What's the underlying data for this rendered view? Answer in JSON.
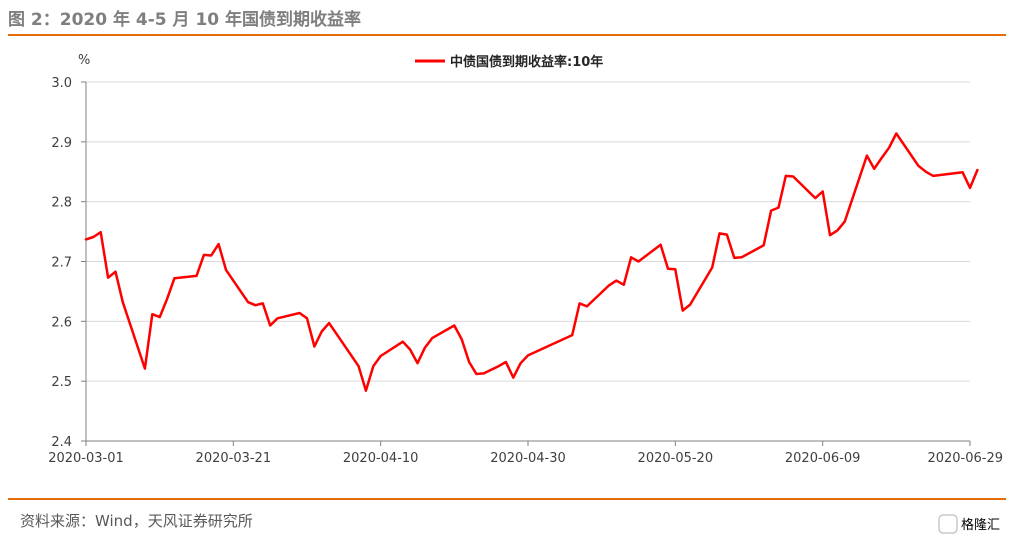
{
  "figure_title": "图 2：2020 年 4-5 月 10 年国债到期收益率",
  "source_note": "资料来源：Wind，天风证券研究所",
  "watermark": "格隆汇",
  "colors": {
    "accent_rule": "#e46c0a",
    "series": "#ff0000",
    "grid": "#d9d9d9",
    "axis": "#808080"
  },
  "chart_data": {
    "type": "line",
    "title": "",
    "ylabel": "%",
    "xlabel": "",
    "ylim": [
      2.4,
      3.0
    ],
    "yticks": [
      "3.0",
      "2.9",
      "2.8",
      "2.7",
      "2.6",
      "2.5",
      "2.4"
    ],
    "xticks": [
      "2020-03-01",
      "2020-03-21",
      "2020-04-10",
      "2020-04-30",
      "2020-05-20",
      "2020-06-09",
      "2020-06-29"
    ],
    "x_range": [
      "2020-03-01",
      "2020-06-29"
    ],
    "grid": true,
    "legend_position": "top",
    "series": [
      {
        "name": "中债国债到期收益率:10年",
        "color": "#ff0000",
        "points": [
          [
            "2020-03-01",
            2.737
          ],
          [
            "2020-03-02",
            2.741
          ],
          [
            "2020-03-03",
            2.749
          ],
          [
            "2020-03-04",
            2.673
          ],
          [
            "2020-03-05",
            2.683
          ],
          [
            "2020-03-06",
            2.632
          ],
          [
            "2020-03-09",
            2.521
          ],
          [
            "2020-03-10",
            2.612
          ],
          [
            "2020-03-11",
            2.607
          ],
          [
            "2020-03-12",
            2.637
          ],
          [
            "2020-03-13",
            2.672
          ],
          [
            "2020-03-16",
            2.676
          ],
          [
            "2020-03-17",
            2.711
          ],
          [
            "2020-03-18",
            2.71
          ],
          [
            "2020-03-19",
            2.729
          ],
          [
            "2020-03-20",
            2.686
          ],
          [
            "2020-03-23",
            2.632
          ],
          [
            "2020-03-24",
            2.627
          ],
          [
            "2020-03-25",
            2.63
          ],
          [
            "2020-03-26",
            2.593
          ],
          [
            "2020-03-27",
            2.605
          ],
          [
            "2020-03-30",
            2.614
          ],
          [
            "2020-03-31",
            2.605
          ],
          [
            "2020-04-01",
            2.558
          ],
          [
            "2020-04-02",
            2.583
          ],
          [
            "2020-04-03",
            2.597
          ],
          [
            "2020-04-07",
            2.525
          ],
          [
            "2020-04-08",
            2.484
          ],
          [
            "2020-04-09",
            2.525
          ],
          [
            "2020-04-10",
            2.542
          ],
          [
            "2020-04-13",
            2.566
          ],
          [
            "2020-04-14",
            2.553
          ],
          [
            "2020-04-15",
            2.53
          ],
          [
            "2020-04-16",
            2.556
          ],
          [
            "2020-04-17",
            2.572
          ],
          [
            "2020-04-20",
            2.593
          ],
          [
            "2020-04-21",
            2.57
          ],
          [
            "2020-04-22",
            2.532
          ],
          [
            "2020-04-23",
            2.512
          ],
          [
            "2020-04-24",
            2.513
          ],
          [
            "2020-04-26",
            2.525
          ],
          [
            "2020-04-27",
            2.532
          ],
          [
            "2020-04-28",
            2.506
          ],
          [
            "2020-04-29",
            2.53
          ],
          [
            "2020-04-30",
            2.543
          ],
          [
            "2020-05-06",
            2.577
          ],
          [
            "2020-05-07",
            2.63
          ],
          [
            "2020-05-08",
            2.625
          ],
          [
            "2020-05-11",
            2.66
          ],
          [
            "2020-05-12",
            2.668
          ],
          [
            "2020-05-13",
            2.661
          ],
          [
            "2020-05-14",
            2.707
          ],
          [
            "2020-05-15",
            2.7
          ],
          [
            "2020-05-18",
            2.728
          ],
          [
            "2020-05-19",
            2.688
          ],
          [
            "2020-05-20",
            2.687
          ],
          [
            "2020-05-21",
            2.618
          ],
          [
            "2020-05-22",
            2.628
          ],
          [
            "2020-05-25",
            2.69
          ],
          [
            "2020-05-26",
            2.747
          ],
          [
            "2020-05-27",
            2.745
          ],
          [
            "2020-05-28",
            2.706
          ],
          [
            "2020-05-29",
            2.707
          ],
          [
            "2020-06-01",
            2.727
          ],
          [
            "2020-06-02",
            2.785
          ],
          [
            "2020-06-03",
            2.79
          ],
          [
            "2020-06-04",
            2.843
          ],
          [
            "2020-06-05",
            2.842
          ],
          [
            "2020-06-08",
            2.806
          ],
          [
            "2020-06-09",
            2.817
          ],
          [
            "2020-06-10",
            2.744
          ],
          [
            "2020-06-11",
            2.752
          ],
          [
            "2020-06-12",
            2.767
          ],
          [
            "2020-06-15",
            2.877
          ],
          [
            "2020-06-16",
            2.855
          ],
          [
            "2020-06-17",
            2.873
          ],
          [
            "2020-06-18",
            2.89
          ],
          [
            "2020-06-19",
            2.914
          ],
          [
            "2020-06-22",
            2.86
          ],
          [
            "2020-06-23",
            2.85
          ],
          [
            "2020-06-24",
            2.843
          ],
          [
            "2020-06-28",
            2.849
          ],
          [
            "2020-06-29",
            2.823
          ],
          [
            "2020-06-30",
            2.853
          ]
        ]
      }
    ]
  }
}
